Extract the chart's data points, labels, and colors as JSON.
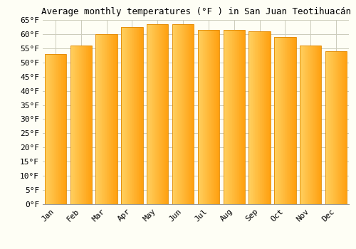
{
  "title": "Average monthly temperatures (°F ) in San Juan Teotihuacán",
  "months": [
    "Jan",
    "Feb",
    "Mar",
    "Apr",
    "May",
    "Jun",
    "Jul",
    "Aug",
    "Sep",
    "Oct",
    "Nov",
    "Dec"
  ],
  "values": [
    53,
    56,
    60,
    62.5,
    63.5,
    63.5,
    61.5,
    61.5,
    61,
    59,
    56,
    54
  ],
  "bar_color_left": "#FFD060",
  "bar_color_right": "#FFA010",
  "bar_edge_color": "#E08800",
  "ylim": [
    0,
    65
  ],
  "yticks": [
    0,
    5,
    10,
    15,
    20,
    25,
    30,
    35,
    40,
    45,
    50,
    55,
    60,
    65
  ],
  "ytick_labels": [
    "0°F",
    "5°F",
    "10°F",
    "15°F",
    "20°F",
    "25°F",
    "30°F",
    "35°F",
    "40°F",
    "45°F",
    "50°F",
    "55°F",
    "60°F",
    "65°F"
  ],
  "background_color": "#FEFEF5",
  "grid_color": "#CCCCBB",
  "title_fontsize": 9,
  "tick_fontsize": 8,
  "bar_width": 0.85
}
